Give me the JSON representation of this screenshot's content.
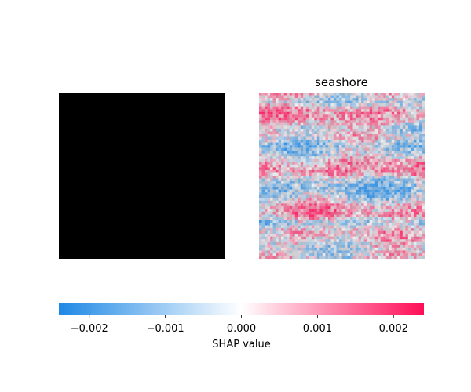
{
  "chart_data": {
    "type": "heatmap",
    "panels": [
      {
        "title": "",
        "content": "input image (rendered black)",
        "background": "#000000"
      },
      {
        "title": "seashore",
        "content": "SHAP value heatmap over faint grayscale image",
        "value_range": [
          -0.0024,
          0.0024
        ],
        "row_trend": [
          0.15,
          -0.35,
          0.55,
          0.4,
          -0.2,
          0.1,
          -0.55,
          -0.25,
          0.45,
          0.6,
          -0.2,
          -0.6,
          -0.3,
          0.35,
          0.5,
          -0.45,
          0.25,
          0.1,
          -0.15,
          0.05
        ]
      }
    ],
    "colorbar": {
      "label": "SHAP value",
      "range": [
        -0.0024,
        0.0024
      ],
      "ticks": [
        -0.002,
        -0.001,
        0.0,
        0.001,
        0.002
      ],
      "tick_labels": [
        "−0.002",
        "−0.001",
        "0.000",
        "0.001",
        "0.002"
      ],
      "colors": {
        "negative": "#1e88e5",
        "zero": "#ffffff",
        "positive": "#ff0d57"
      }
    }
  }
}
